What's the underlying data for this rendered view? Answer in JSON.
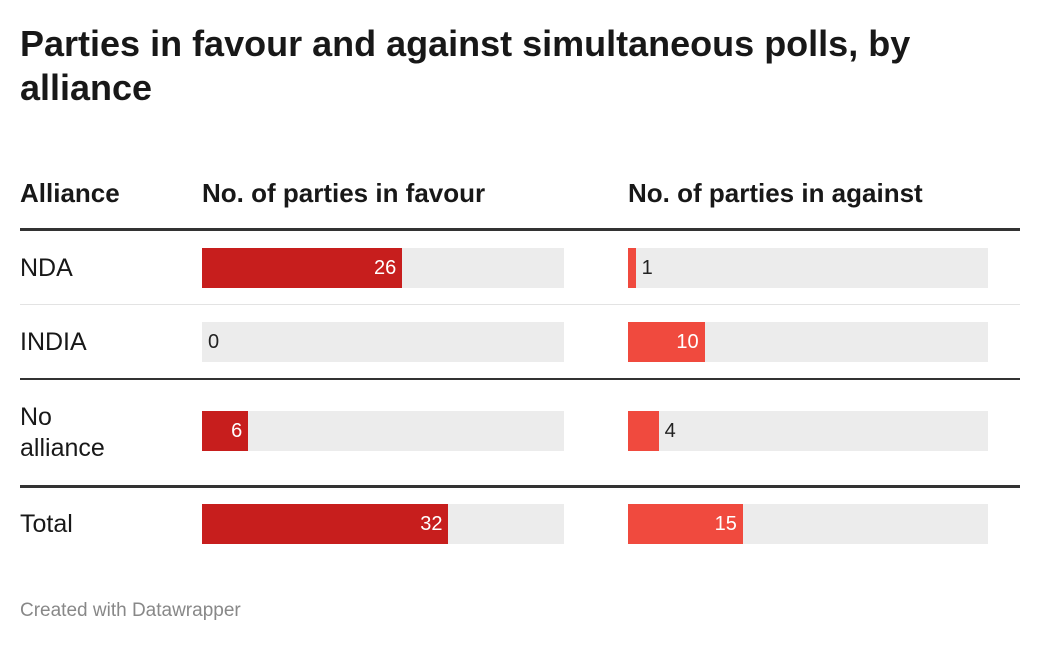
{
  "title": "Parties in favour and against simultaneous polls, by alliance",
  "footer": "Created with Datawrapper",
  "chart_data": {
    "type": "table",
    "columns": [
      "Alliance",
      "No. of parties in favour",
      "No. of parties in against"
    ],
    "bar_max": 47,
    "colors": {
      "favour": "#c71e1d",
      "against": "#f04a3e",
      "track": "#ececec"
    },
    "rows": [
      {
        "label": "NDA",
        "favour": 26,
        "against": 1
      },
      {
        "label": "INDIA",
        "favour": 0,
        "against": 10
      },
      {
        "label": "No alliance",
        "favour": 6,
        "against": 4
      },
      {
        "label": "Total",
        "favour": 32,
        "against": 15
      }
    ]
  }
}
